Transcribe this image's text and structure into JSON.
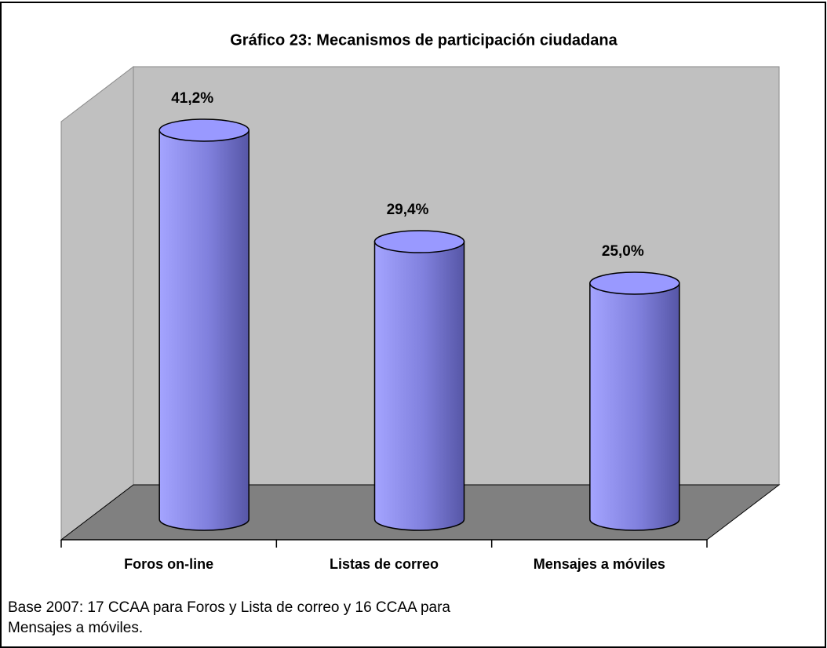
{
  "chart_data": {
    "type": "bar",
    "title": "Gráfico 23: Mecanismos de participación ciudadana",
    "categories": [
      "Foros on-line",
      "Listas de correo",
      "Mensajes a móviles"
    ],
    "values": [
      41.2,
      29.4,
      25.0
    ],
    "value_labels": [
      "41,2%",
      "29,4%",
      "25,0%"
    ],
    "color": "#9999ff",
    "footnote": [
      "Base 2007: 17 CCAA para Foros y Lista de correo y 16 CCAA para",
      "Mensajes a móviles."
    ]
  }
}
